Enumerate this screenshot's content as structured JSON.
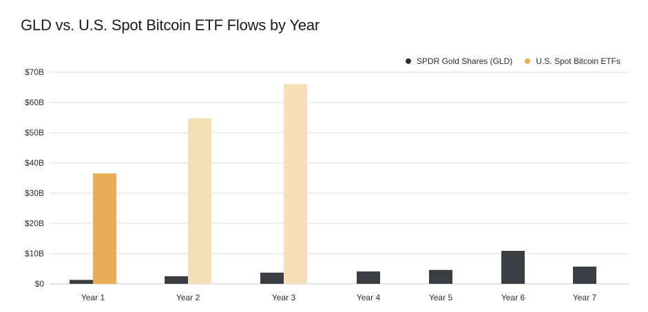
{
  "title": "GLD vs. U.S. Spot Bitcoin ETF Flows by Year",
  "colors": {
    "gld": "#3a3d42",
    "btc": "#e8ad55",
    "btc_light": "#f5dfb6",
    "grid": "#dcdcdc"
  },
  "chart_data": {
    "type": "bar",
    "title": "GLD vs. U.S. Spot Bitcoin ETF Flows by Year",
    "xlabel": "",
    "ylabel": "",
    "ylim": [
      0,
      70
    ],
    "yticks": [
      0,
      10,
      20,
      30,
      40,
      50,
      60,
      70
    ],
    "ytick_labels": [
      "$0",
      "$10B",
      "$20B",
      "$30B",
      "$40B",
      "$50B",
      "$60B",
      "$70B"
    ],
    "grid": true,
    "legend_position": "top-right",
    "categories": [
      "Year 1",
      "Year 2",
      "Year 3",
      "Year 4",
      "Year 5",
      "Year 6",
      "Year 7"
    ],
    "series": [
      {
        "name": "SPDR Gold Shares (GLD)",
        "values": [
          1.3,
          2.5,
          3.7,
          4.1,
          4.6,
          10.9,
          5.7
        ],
        "color": "#3a3d42"
      },
      {
        "name": "U.S. Spot Bitcoin ETFs",
        "values": [
          36.5,
          54.8,
          66.0,
          null,
          null,
          null,
          null
        ],
        "color": "#e8ad55",
        "faded_categories": [
          "Year 2",
          "Year 3"
        ],
        "faded_color": "#f5dfb6"
      }
    ]
  }
}
